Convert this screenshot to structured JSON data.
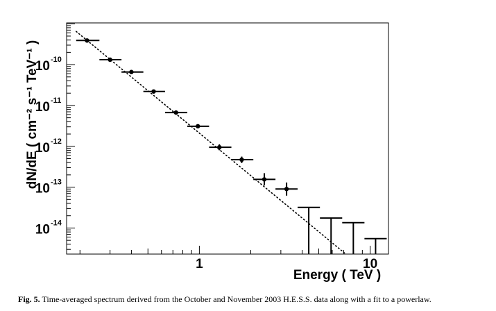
{
  "chart_data": {
    "type": "scatter",
    "xlabel": "Energy ( TeV )",
    "ylabel": "dN/dE  ( cm⁻² s⁻¹ TeV⁻¹ )",
    "xscale": "log",
    "yscale": "log",
    "xlim": [
      0.167,
      12.8
    ],
    "ylim": [
      2.3e-15,
      1.05e-09
    ],
    "x_tick_labels": [
      "1",
      "10"
    ],
    "y_tick_labels": [
      {
        "base": "10",
        "exp": "-14"
      },
      {
        "base": "10",
        "exp": "-13"
      },
      {
        "base": "10",
        "exp": "-12"
      },
      {
        "base": "10",
        "exp": "-11"
      },
      {
        "base": "10",
        "exp": "-10"
      }
    ],
    "y_ticks": [
      1e-14,
      1e-13,
      1e-12,
      1e-11,
      1e-10
    ],
    "x_ticks": [
      1,
      10
    ],
    "grid": false,
    "points": [
      {
        "x": 0.22,
        "xlo": 0.19,
        "xhi": 0.26,
        "y": 3.9e-10,
        "ylo": 3.6e-10,
        "yhi": 4.2e-10
      },
      {
        "x": 0.3,
        "xlo": 0.26,
        "xhi": 0.35,
        "y": 1.32e-10,
        "ylo": 1.22e-10,
        "yhi": 1.42e-10
      },
      {
        "x": 0.4,
        "xlo": 0.35,
        "xhi": 0.47,
        "y": 6.6e-11,
        "ylo": 6.1e-11,
        "yhi": 7.1e-11
      },
      {
        "x": 0.54,
        "xlo": 0.47,
        "xhi": 0.63,
        "y": 2.2e-11,
        "ylo": 2e-11,
        "yhi": 2.4e-11
      },
      {
        "x": 0.73,
        "xlo": 0.63,
        "xhi": 0.85,
        "y": 6.7e-12,
        "ylo": 6.1e-12,
        "yhi": 7.3e-12
      },
      {
        "x": 0.98,
        "xlo": 0.85,
        "xhi": 1.14,
        "y": 3.1e-12,
        "ylo": 2.8e-12,
        "yhi": 3.4e-12
      },
      {
        "x": 1.31,
        "xlo": 1.14,
        "xhi": 1.54,
        "y": 9.5e-13,
        "ylo": 8e-13,
        "yhi": 1.12e-12
      },
      {
        "x": 1.77,
        "xlo": 1.54,
        "xhi": 2.07,
        "y": 4.7e-13,
        "ylo": 3.9e-13,
        "yhi": 5.6e-13
      },
      {
        "x": 2.4,
        "xlo": 2.07,
        "xhi": 2.79,
        "y": 1.55e-13,
        "ylo": 1.1e-13,
        "yhi": 2.2e-13
      },
      {
        "x": 3.24,
        "xlo": 2.79,
        "xhi": 3.76,
        "y": 9e-14,
        "ylo": 6.2e-14,
        "yhi": 1.3e-13
      }
    ],
    "upper_limits": [
      {
        "xlo": 3.76,
        "xhi": 5.08,
        "y": 3.2e-14
      },
      {
        "xlo": 5.08,
        "xhi": 6.86,
        "y": 1.75e-14
      },
      {
        "xlo": 6.86,
        "xhi": 9.26,
        "y": 1.35e-14
      },
      {
        "xlo": 9.26,
        "xhi": 12.5,
        "y": 5.5e-15
      }
    ],
    "fit_line": {
      "type": "powerlaw",
      "x_range": [
        0.19,
        7.2
      ],
      "y_at_range": [
        6.5e-10,
        2.3e-15
      ],
      "style": "dotted"
    }
  },
  "caption": {
    "label": "Fig. 5.",
    "text": " Time-averaged spectrum derived from the October and November 2003 H.E.S.S. data along with a fit to a powerlaw."
  }
}
